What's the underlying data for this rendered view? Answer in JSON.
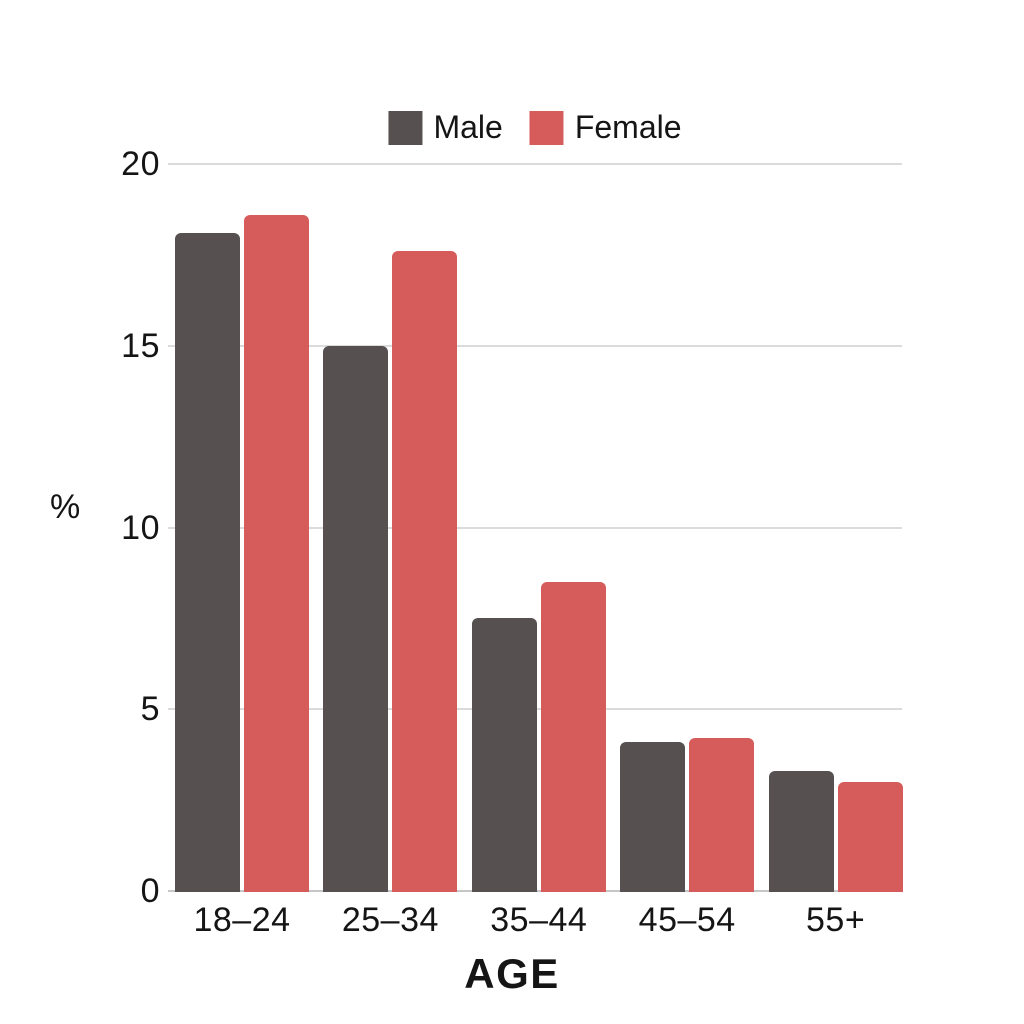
{
  "chart_data": {
    "type": "bar",
    "title": "",
    "categories": [
      "18–24",
      "25–34",
      "35–44",
      "45–54",
      "55+"
    ],
    "series": [
      {
        "name": "Male",
        "color": "#565051",
        "values": [
          18.1,
          15.0,
          7.5,
          4.1,
          3.3
        ]
      },
      {
        "name": "Female",
        "color": "#d65c5b",
        "values": [
          18.6,
          17.6,
          8.5,
          4.2,
          3.0
        ]
      }
    ],
    "xlabel": "AGE",
    "ylabel": "%",
    "ylim": [
      0,
      20
    ],
    "yticks": [
      0,
      5,
      10,
      15,
      20
    ],
    "grid": true,
    "legend_position": "top-center",
    "background_color": "#ffffff",
    "gridline_color": "#dbdbdb",
    "axis_line_color": "#c6c6c6",
    "text_color": "#151515"
  }
}
